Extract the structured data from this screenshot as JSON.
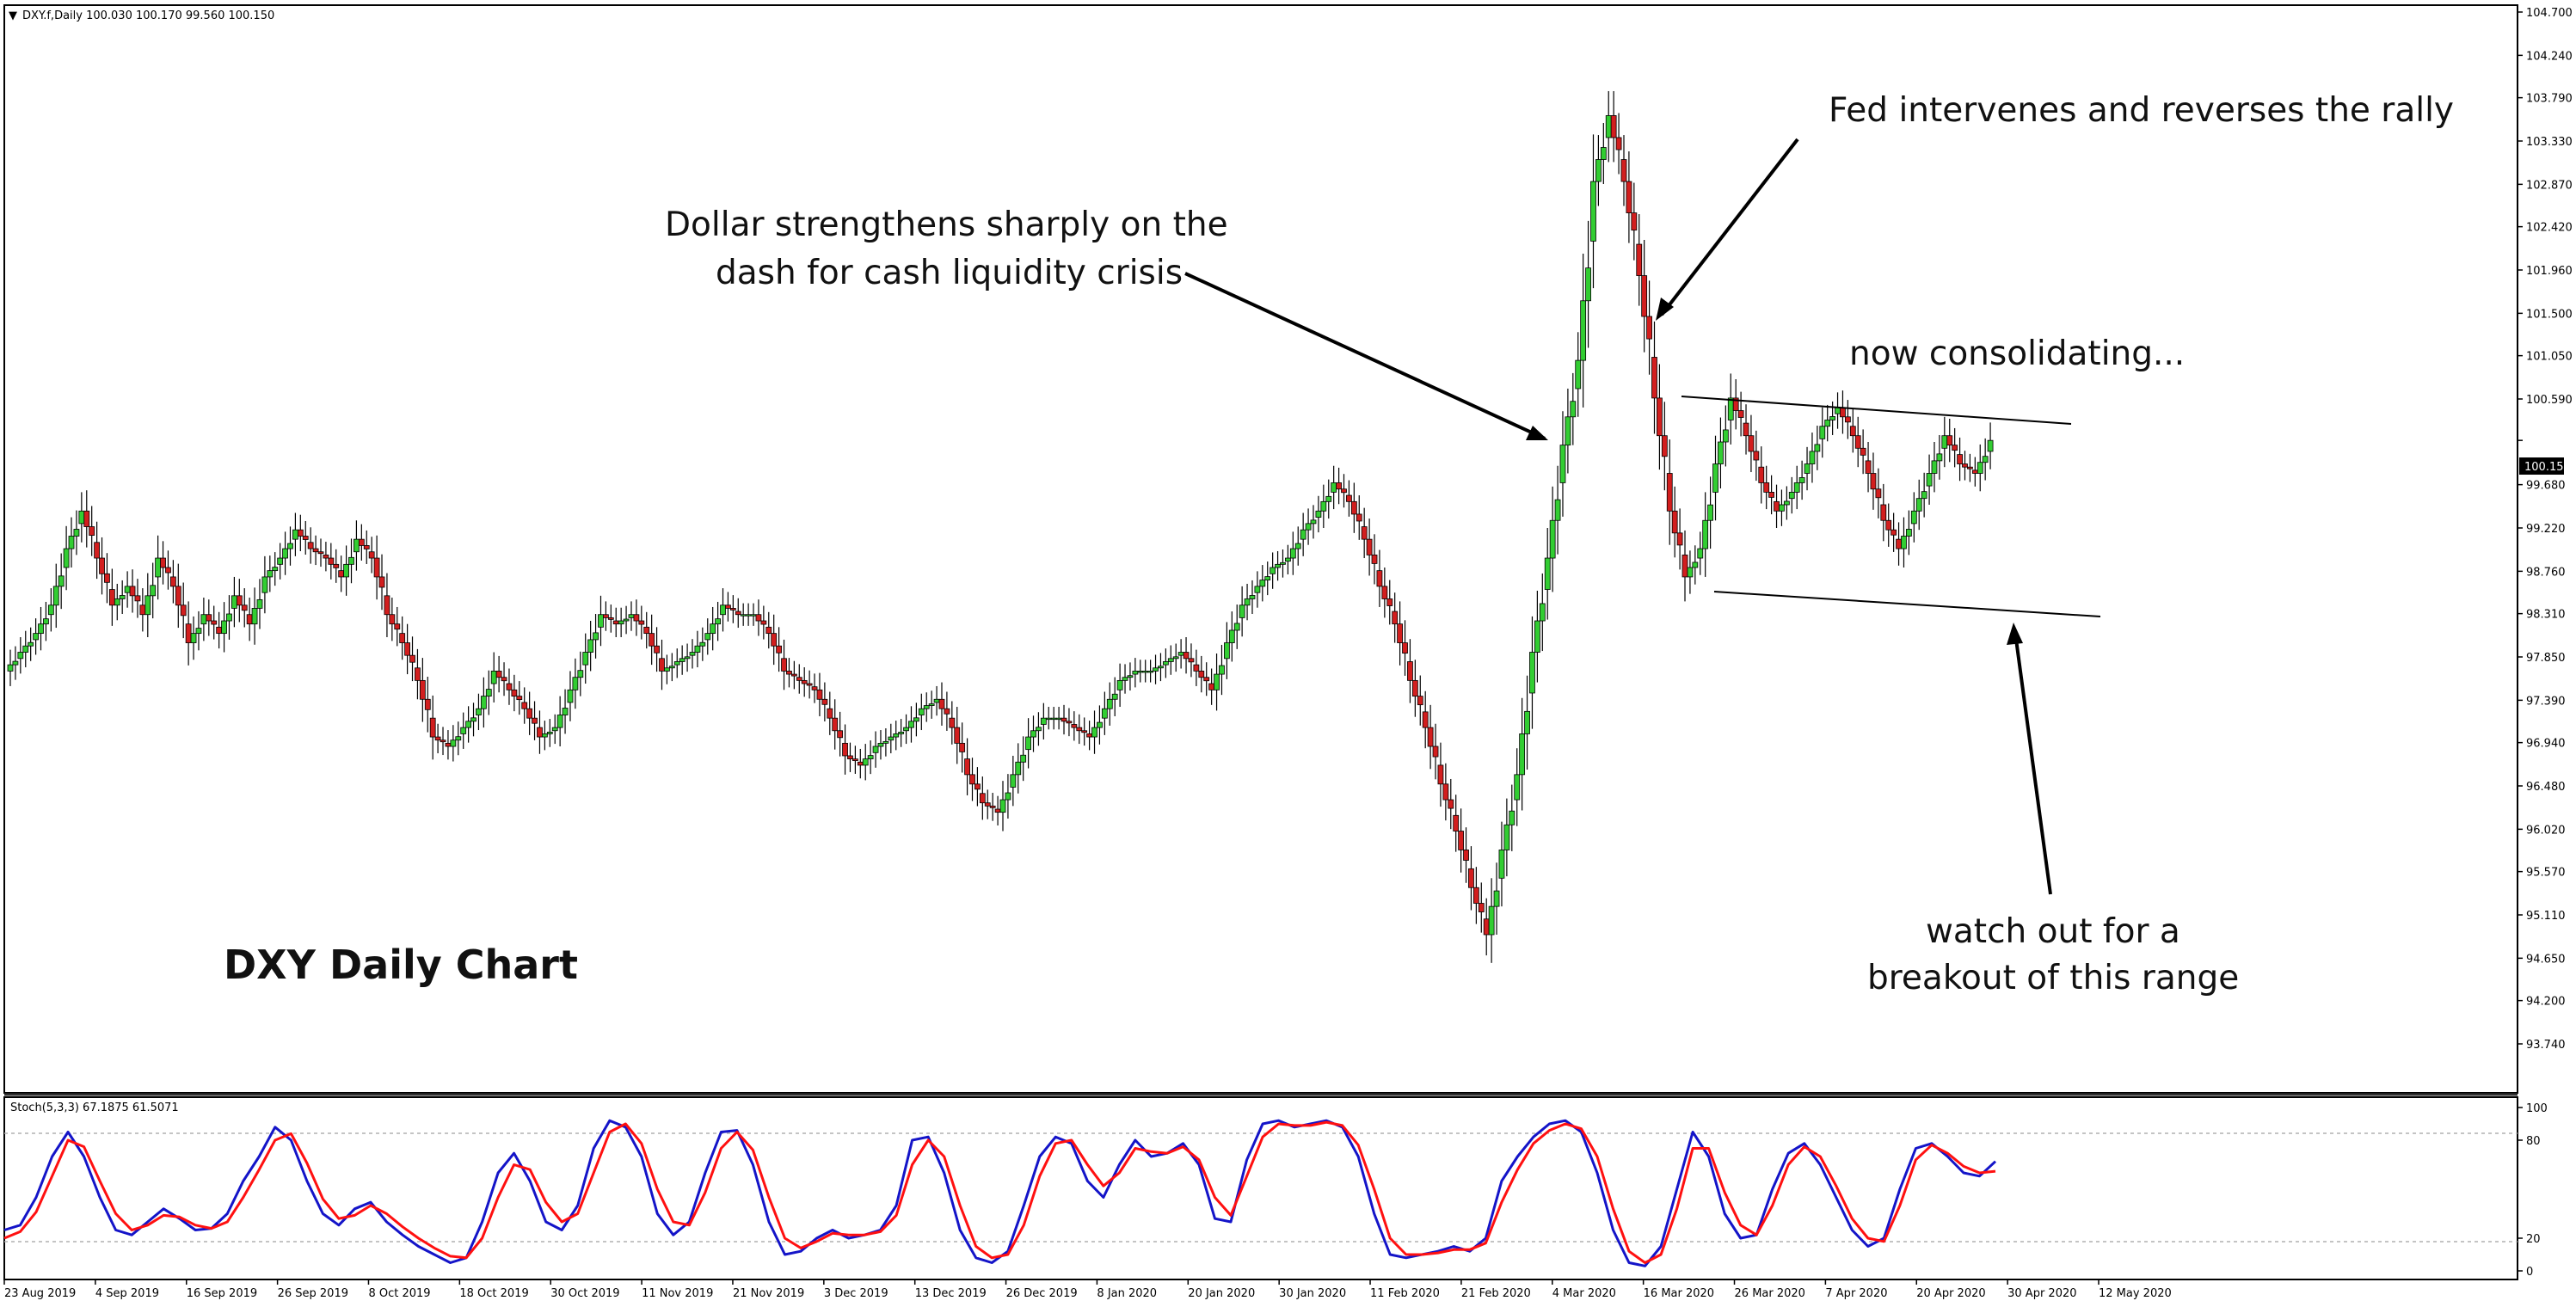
{
  "header": {
    "symbol_info": "DXY.f,Daily  100.030 100.170 99.560 100.150",
    "indicator_info": "Stoch(5,3,3) 67.1875 61.5071"
  },
  "chart_title": "DXY Daily Chart",
  "annotations": {
    "dollar_line1": "Dollar strengthens sharply on the",
    "dollar_line2": "dash for cash liquidity crisis",
    "fed": "Fed intervenes and reverses the rally",
    "consolidating": "now consolidating...",
    "watch_line1": "watch out for a",
    "watch_line2": "breakout of this range"
  },
  "colors": {
    "bull": "#32cd32",
    "bear": "#d21e1e",
    "stoch_main": "#1414c8",
    "stoch_signal": "#ff1010"
  },
  "chart_data": [
    {
      "type": "candlestick",
      "symbol": "DXY.f",
      "timeframe": "Daily",
      "title": "DXY Daily Chart",
      "last_price": "100.150",
      "ylim": [
        93.74,
        104.7
      ],
      "y_ticks": [
        "104.700",
        "104.240",
        "103.790",
        "103.330",
        "102.870",
        "102.420",
        "101.960",
        "101.500",
        "101.050",
        "100.590",
        "100.150",
        "99.680",
        "99.220",
        "98.760",
        "98.310",
        "97.850",
        "97.390",
        "96.940",
        "96.480",
        "96.020",
        "95.570",
        "95.110",
        "94.650",
        "94.200",
        "93.740"
      ],
      "x_ticks": [
        "23 Aug 2019",
        "4 Sep 2019",
        "16 Sep 2019",
        "26 Sep 2019",
        "8 Oct 2019",
        "18 Oct 2019",
        "30 Oct 2019",
        "11 Nov 2019",
        "21 Nov 2019",
        "3 Dec 2019",
        "13 Dec 2019",
        "26 Dec 2019",
        "8 Jan 2020",
        "20 Jan 2020",
        "30 Jan 2020",
        "11 Feb 2020",
        "21 Feb 2020",
        "4 Mar 2020",
        "16 Mar 2020",
        "26 Mar 2020",
        "7 Apr 2020",
        "20 Apr 2020",
        "30 Apr 2020",
        "12 May 2020"
      ],
      "close_path": [
        97.7,
        97.9,
        98.1,
        98.4,
        99.0,
        99.4,
        98.9,
        98.4,
        98.6,
        98.3,
        98.9,
        98.6,
        98.0,
        98.3,
        98.1,
        98.5,
        98.2,
        98.7,
        98.9,
        99.2,
        99.0,
        98.9,
        98.7,
        99.1,
        98.9,
        98.3,
        98.0,
        97.6,
        97.0,
        96.9,
        97.1,
        97.3,
        97.7,
        97.5,
        97.3,
        97.0,
        97.1,
        97.5,
        97.9,
        98.3,
        98.2,
        98.3,
        98.1,
        97.7,
        97.8,
        97.9,
        98.1,
        98.4,
        98.3,
        98.3,
        98.1,
        97.7,
        97.6,
        97.5,
        97.2,
        96.8,
        96.7,
        96.9,
        97.0,
        97.1,
        97.3,
        97.4,
        97.1,
        96.6,
        96.3,
        96.2,
        96.6,
        97.0,
        97.2,
        97.2,
        97.1,
        97.0,
        97.3,
        97.6,
        97.7,
        97.7,
        97.8,
        97.9,
        97.7,
        97.5,
        98.0,
        98.4,
        98.6,
        98.8,
        98.9,
        99.2,
        99.4,
        99.7,
        99.5,
        99.1,
        98.6,
        98.2,
        97.6,
        97.1,
        96.5,
        96.0,
        95.4,
        94.9,
        95.8,
        96.6,
        97.9,
        98.9,
        100.1,
        101.0,
        102.9,
        103.6,
        102.9,
        101.9,
        100.6,
        99.4,
        98.7,
        99.0,
        99.9,
        100.6,
        100.2,
        99.7,
        99.4,
        99.6,
        99.9,
        100.3,
        100.5,
        100.2,
        99.8,
        99.3,
        99.0,
        99.4,
        99.8,
        100.2,
        99.9,
        99.8,
        100.15
      ]
    },
    {
      "type": "line",
      "title": "Stoch(5,3,3)",
      "ylim": [
        0,
        100
      ],
      "y_ticks": [
        "100",
        "80",
        "20",
        "0"
      ],
      "levels": [
        80,
        20
      ],
      "series": [
        {
          "name": "Stoch(5,3,3)",
          "values": [
            25,
            28,
            45,
            70,
            85,
            70,
            45,
            25,
            22,
            30,
            38,
            32,
            25,
            26,
            35,
            55,
            70,
            88,
            80,
            55,
            35,
            28,
            38,
            42,
            30,
            22,
            15,
            10,
            5,
            8,
            30,
            60,
            72,
            55,
            30,
            25,
            40,
            75,
            92,
            88,
            70,
            35,
            22,
            30,
            60,
            85,
            86,
            65,
            30,
            10,
            12,
            20,
            25,
            20,
            22,
            25,
            40,
            80,
            82,
            60,
            25,
            8,
            5,
            12,
            40,
            70,
            82,
            78,
            55,
            45,
            65,
            80,
            70,
            72,
            78,
            65,
            32,
            30,
            68,
            90,
            92,
            88,
            90,
            92,
            88,
            70,
            35,
            10,
            8,
            10,
            12,
            15,
            12,
            20,
            55,
            70,
            82,
            90,
            92,
            85,
            60,
            25,
            5,
            3,
            15,
            50,
            85,
            70,
            35,
            20,
            22,
            50,
            72,
            78,
            65,
            45,
            25,
            15,
            20,
            50,
            75,
            78,
            70,
            60,
            58,
            67
          ]
        },
        {
          "name": "Signal",
          "values": [
            20,
            24,
            36,
            58,
            80,
            76,
            55,
            35,
            25,
            28,
            34,
            33,
            28,
            26,
            30,
            45,
            62,
            80,
            84,
            66,
            44,
            32,
            34,
            40,
            35,
            27,
            20,
            14,
            9,
            8,
            20,
            45,
            65,
            62,
            42,
            30,
            35,
            60,
            85,
            90,
            78,
            50,
            30,
            28,
            48,
            75,
            85,
            74,
            45,
            20,
            14,
            18,
            23,
            22,
            22,
            24,
            34,
            65,
            80,
            70,
            40,
            15,
            8,
            10,
            28,
            58,
            78,
            80,
            65,
            52,
            60,
            75,
            73,
            72,
            76,
            68,
            45,
            34,
            58,
            82,
            90,
            89,
            89,
            91,
            89,
            77,
            50,
            20,
            10,
            10,
            11,
            13,
            13,
            17,
            42,
            62,
            78,
            86,
            90,
            87,
            70,
            38,
            12,
            5,
            10,
            38,
            75,
            75,
            48,
            28,
            22,
            40,
            65,
            76,
            70,
            52,
            32,
            20,
            18,
            40,
            68,
            77,
            72,
            64,
            60,
            61
          ]
        }
      ]
    }
  ]
}
